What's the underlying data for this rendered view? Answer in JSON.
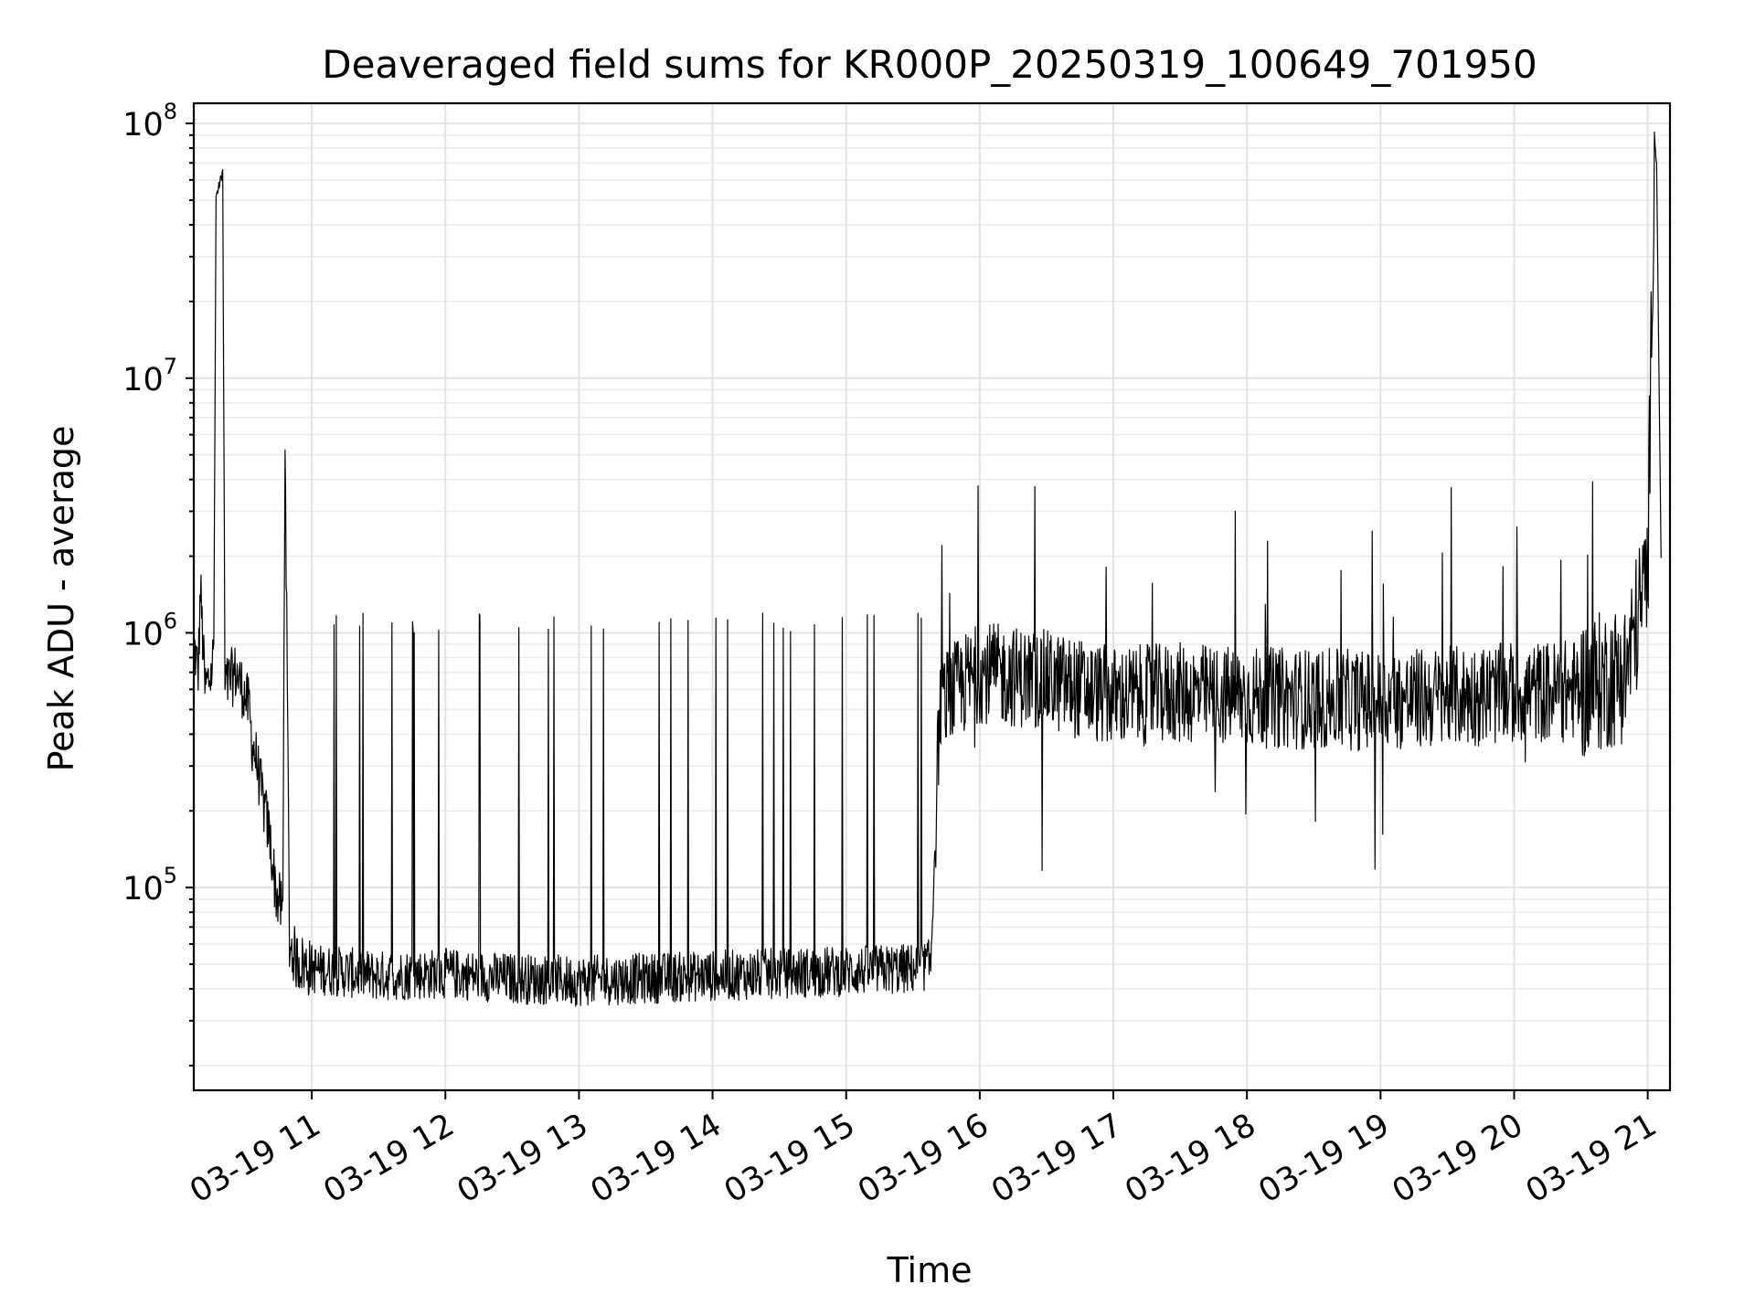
{
  "chart_data": {
    "type": "line",
    "title": "Deaveraged field sums for KR000P_20250319_100649_701950",
    "xlabel": "Time",
    "ylabel": "Peak ADU - average",
    "yscale": "log",
    "ylim": [
      16000,
      120000000
    ],
    "xlim": [
      "2025-03-19 10:07",
      "2025-03-19 21:10"
    ],
    "x_ticks": [
      {
        "t": "2025-03-19 11:00",
        "label": "03-19 11"
      },
      {
        "t": "2025-03-19 12:00",
        "label": "03-19 12"
      },
      {
        "t": "2025-03-19 13:00",
        "label": "03-19 13"
      },
      {
        "t": "2025-03-19 14:00",
        "label": "03-19 14"
      },
      {
        "t": "2025-03-19 15:00",
        "label": "03-19 15"
      },
      {
        "t": "2025-03-19 16:00",
        "label": "03-19 16"
      },
      {
        "t": "2025-03-19 17:00",
        "label": "03-19 17"
      },
      {
        "t": "2025-03-19 18:00",
        "label": "03-19 18"
      },
      {
        "t": "2025-03-19 19:00",
        "label": "03-19 19"
      },
      {
        "t": "2025-03-19 20:00",
        "label": "03-19 20"
      },
      {
        "t": "2025-03-19 21:00",
        "label": "03-19 21"
      }
    ],
    "y_ticks": [
      {
        "value": 100000,
        "base": "10",
        "exp": "5"
      },
      {
        "value": 1000000,
        "base": "10",
        "exp": "6"
      },
      {
        "value": 10000000,
        "base": "10",
        "exp": "7"
      },
      {
        "value": 100000000,
        "base": "10",
        "exp": "8"
      }
    ],
    "grid": true,
    "line_color": "#000000",
    "series": [
      {
        "x": [
          "2025-03-19 10:07",
          "2025-03-19 10:09",
          "2025-03-19 10:10",
          "2025-03-19 10:12",
          "2025-03-19 10:15",
          "2025-03-19 10:16",
          "2025-03-19 10:17",
          "2025-03-19 10:18",
          "2025-03-19 10:19",
          "2025-03-19 10:20",
          "2025-03-19 10:21",
          "2025-03-19 10:23",
          "2025-03-19 10:26",
          "2025-03-19 10:29",
          "2025-03-19 10:32",
          "2025-03-19 10:33",
          "2025-03-19 10:35",
          "2025-03-19 10:38",
          "2025-03-19 10:41",
          "2025-03-19 10:44",
          "2025-03-19 10:47",
          "2025-03-19 10:48",
          "2025-03-19 10:50",
          "2025-03-19 10:53",
          "2025-03-19 10:56",
          "2025-03-19 11:00",
          "2025-03-19 11:30",
          "2025-03-19 12:00",
          "2025-03-19 12:30",
          "2025-03-19 13:00",
          "2025-03-19 13:30",
          "2025-03-19 14:00",
          "2025-03-19 14:30",
          "2025-03-19 15:00",
          "2025-03-19 15:30",
          "2025-03-19 15:38",
          "2025-03-19 15:42",
          "2025-03-19 15:50",
          "2025-03-19 16:00",
          "2025-03-19 16:30",
          "2025-03-19 17:00",
          "2025-03-19 17:30",
          "2025-03-19 18:00",
          "2025-03-19 18:30",
          "2025-03-19 19:00",
          "2025-03-19 19:30",
          "2025-03-19 20:00",
          "2025-03-19 20:30",
          "2025-03-19 20:50",
          "2025-03-19 21:00",
          "2025-03-19 21:03",
          "2025-03-19 21:04",
          "2025-03-19 21:06"
        ],
        "y": [
          900000,
          700000,
          1500000,
          600000,
          700000,
          900000,
          52000000,
          55000000,
          60000000,
          65000000,
          600000,
          650000,
          700000,
          600000,
          500000,
          380000,
          320000,
          220000,
          160000,
          95000,
          80000,
          6300000,
          60000,
          52000,
          50000,
          48000,
          45000,
          46000,
          44000,
          43000,
          44000,
          45000,
          46000,
          47000,
          48000,
          50000,
          520000,
          600000,
          700000,
          650000,
          560000,
          580000,
          560000,
          550000,
          540000,
          560000,
          580000,
          600000,
          700000,
          1700000,
          90000000,
          70000000,
          2000000
        ]
      }
    ]
  }
}
